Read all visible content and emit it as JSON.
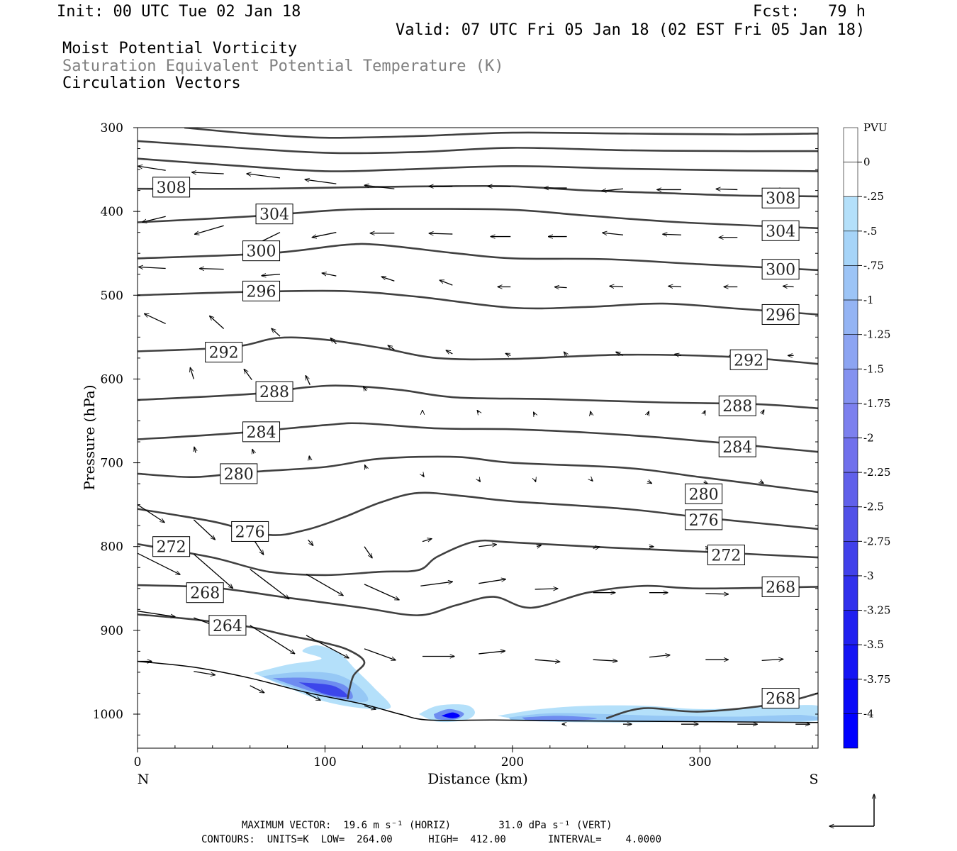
{
  "header": {
    "init": "Init: 00 UTC Tue 02 Jan 18",
    "fcst": "Fcst:   79 h",
    "valid": "Valid: 07 UTC Fri 05 Jan 18 (02 EST Fri 05 Jan 18)",
    "fields": [
      "Moist Potential Vorticity",
      "Saturation Equivalent Potential Temperature (K)",
      "Circulation Vectors"
    ]
  },
  "colors": {
    "contour": "#404040",
    "shade_light": "#b4e0fa",
    "shade_dark": "#0000ff"
  },
  "chart_data": {
    "type": "contour-cross-section",
    "xlabel": "Distance (km)",
    "ylabel": "Pressure (hPa)",
    "xlim": [
      0,
      363
    ],
    "ylim": [
      1040,
      300
    ],
    "x_ticks": [
      0,
      100,
      200,
      300
    ],
    "y_ticks": [
      300,
      400,
      500,
      600,
      700,
      800,
      900,
      1000
    ],
    "x_end_labels": {
      "left": "N",
      "right": "S"
    },
    "contour_units": "K",
    "contour_labels": [
      {
        "value": "308",
        "at": [
          [
            18,
            371
          ],
          [
            343,
            384
          ]
        ]
      },
      {
        "value": "304",
        "at": [
          [
            73,
            403
          ],
          [
            343,
            423
          ]
        ]
      },
      {
        "value": "300",
        "at": [
          [
            66,
            447
          ],
          [
            343,
            469
          ]
        ]
      },
      {
        "value": "296",
        "at": [
          [
            66,
            495
          ],
          [
            343,
            523
          ]
        ]
      },
      {
        "value": "292",
        "at": [
          [
            46,
            568
          ],
          [
            326,
            577
          ]
        ]
      },
      {
        "value": "288",
        "at": [
          [
            73,
            615
          ],
          [
            320,
            632
          ]
        ]
      },
      {
        "value": "284",
        "at": [
          [
            66,
            663
          ],
          [
            320,
            681
          ]
        ]
      },
      {
        "value": "280",
        "at": [
          [
            54,
            713
          ],
          [
            302,
            737
          ]
        ]
      },
      {
        "value": "276",
        "at": [
          [
            60,
            782
          ],
          [
            302,
            768
          ]
        ]
      },
      {
        "value": "272",
        "at": [
          [
            18,
            800
          ],
          [
            314,
            810
          ]
        ]
      },
      {
        "value": "268",
        "at": [
          [
            36,
            855
          ],
          [
            343,
            848
          ]
        ]
      },
      {
        "value": "264",
        "at": [
          [
            48,
            894
          ]
        ]
      },
      {
        "value": "268",
        "at": [
          [
            343,
            981
          ]
        ]
      }
    ],
    "colorbar": {
      "title": "PVU",
      "labels": [
        "0",
        "-.25",
        "-.5",
        "-.75",
        "-1",
        "-1.25",
        "-1.5",
        "-1.75",
        "-2",
        "-2.25",
        "-2.5",
        "-2.75",
        "-3",
        "-3.25",
        "-3.5",
        "-3.75",
        "-4"
      ]
    }
  },
  "footer": {
    "max_vector": "MAXIMUM VECTOR:  19.6 m s⁻¹ (HORIZ)        31.0 dPa s⁻¹ (VERT)",
    "contours": "CONTOURS:  UNITS=K  LOW=  264.00      HIGH=  412.00       INTERVAL=    4.0000"
  }
}
